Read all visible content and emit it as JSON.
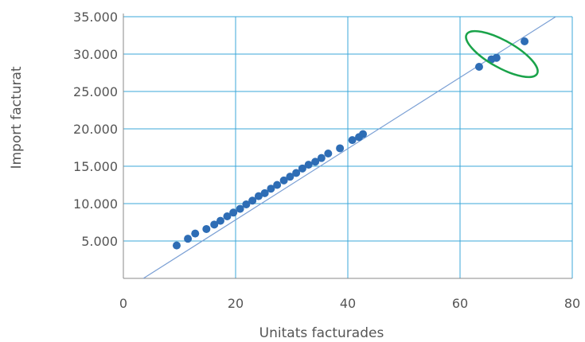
{
  "chart_data": {
    "type": "scatter",
    "title": "",
    "xlabel": "Unitats facturades",
    "ylabel": "Import facturat",
    "xlim": [
      0,
      80
    ],
    "ylim": [
      0,
      35000
    ],
    "x_ticks": [
      {
        "value": 0,
        "label": "0"
      },
      {
        "value": 20,
        "label": "20"
      },
      {
        "value": 40,
        "label": "40"
      },
      {
        "value": 60,
        "label": "60"
      },
      {
        "value": 80,
        "label": "80"
      }
    ],
    "x_gridlines": [
      20,
      40,
      60,
      80
    ],
    "y_ticks": [
      {
        "value": 5000,
        "label": "5.000"
      },
      {
        "value": 10000,
        "label": "10.000"
      },
      {
        "value": 15000,
        "label": "15.000"
      },
      {
        "value": 20000,
        "label": "20.000"
      },
      {
        "value": 25000,
        "label": "25.000"
      },
      {
        "value": 30000,
        "label": "30.000"
      },
      {
        "value": 35000,
        "label": "35.000"
      }
    ],
    "grid": true,
    "colors": {
      "points": "#2e6db5",
      "trendline": "#7a9fd4",
      "grid": "#3ba7d8",
      "highlight": "#1aa34a",
      "axis": "#888888"
    },
    "trendline": {
      "x": [
        0,
        80
      ],
      "y": [
        -1700,
        36400
      ]
    },
    "points": [
      {
        "x": 9.5,
        "y": 4400
      },
      {
        "x": 11.5,
        "y": 5300
      },
      {
        "x": 12.8,
        "y": 6000
      },
      {
        "x": 14.8,
        "y": 6600
      },
      {
        "x": 16.2,
        "y": 7200
      },
      {
        "x": 17.3,
        "y": 7700
      },
      {
        "x": 18.5,
        "y": 8300
      },
      {
        "x": 19.6,
        "y": 8800
      },
      {
        "x": 20.8,
        "y": 9300
      },
      {
        "x": 21.9,
        "y": 9900
      },
      {
        "x": 23,
        "y": 10400
      },
      {
        "x": 24.1,
        "y": 11000
      },
      {
        "x": 25.2,
        "y": 11400
      },
      {
        "x": 26.3,
        "y": 12000
      },
      {
        "x": 27.4,
        "y": 12500
      },
      {
        "x": 28.6,
        "y": 13100
      },
      {
        "x": 29.7,
        "y": 13600
      },
      {
        "x": 30.8,
        "y": 14100
      },
      {
        "x": 31.9,
        "y": 14700
      },
      {
        "x": 33,
        "y": 15200
      },
      {
        "x": 34.2,
        "y": 15600
      },
      {
        "x": 35.3,
        "y": 16100
      },
      {
        "x": 36.5,
        "y": 16700
      },
      {
        "x": 38.6,
        "y": 17400
      },
      {
        "x": 40.8,
        "y": 18500
      },
      {
        "x": 42,
        "y": 18900
      },
      {
        "x": 42.7,
        "y": 19300
      },
      {
        "x": 63.4,
        "y": 28300
      },
      {
        "x": 65.6,
        "y": 29300
      },
      {
        "x": 66.5,
        "y": 29500
      },
      {
        "x": 71.5,
        "y": 31700
      }
    ],
    "highlighted_points": [
      27,
      28,
      29,
      30
    ]
  }
}
